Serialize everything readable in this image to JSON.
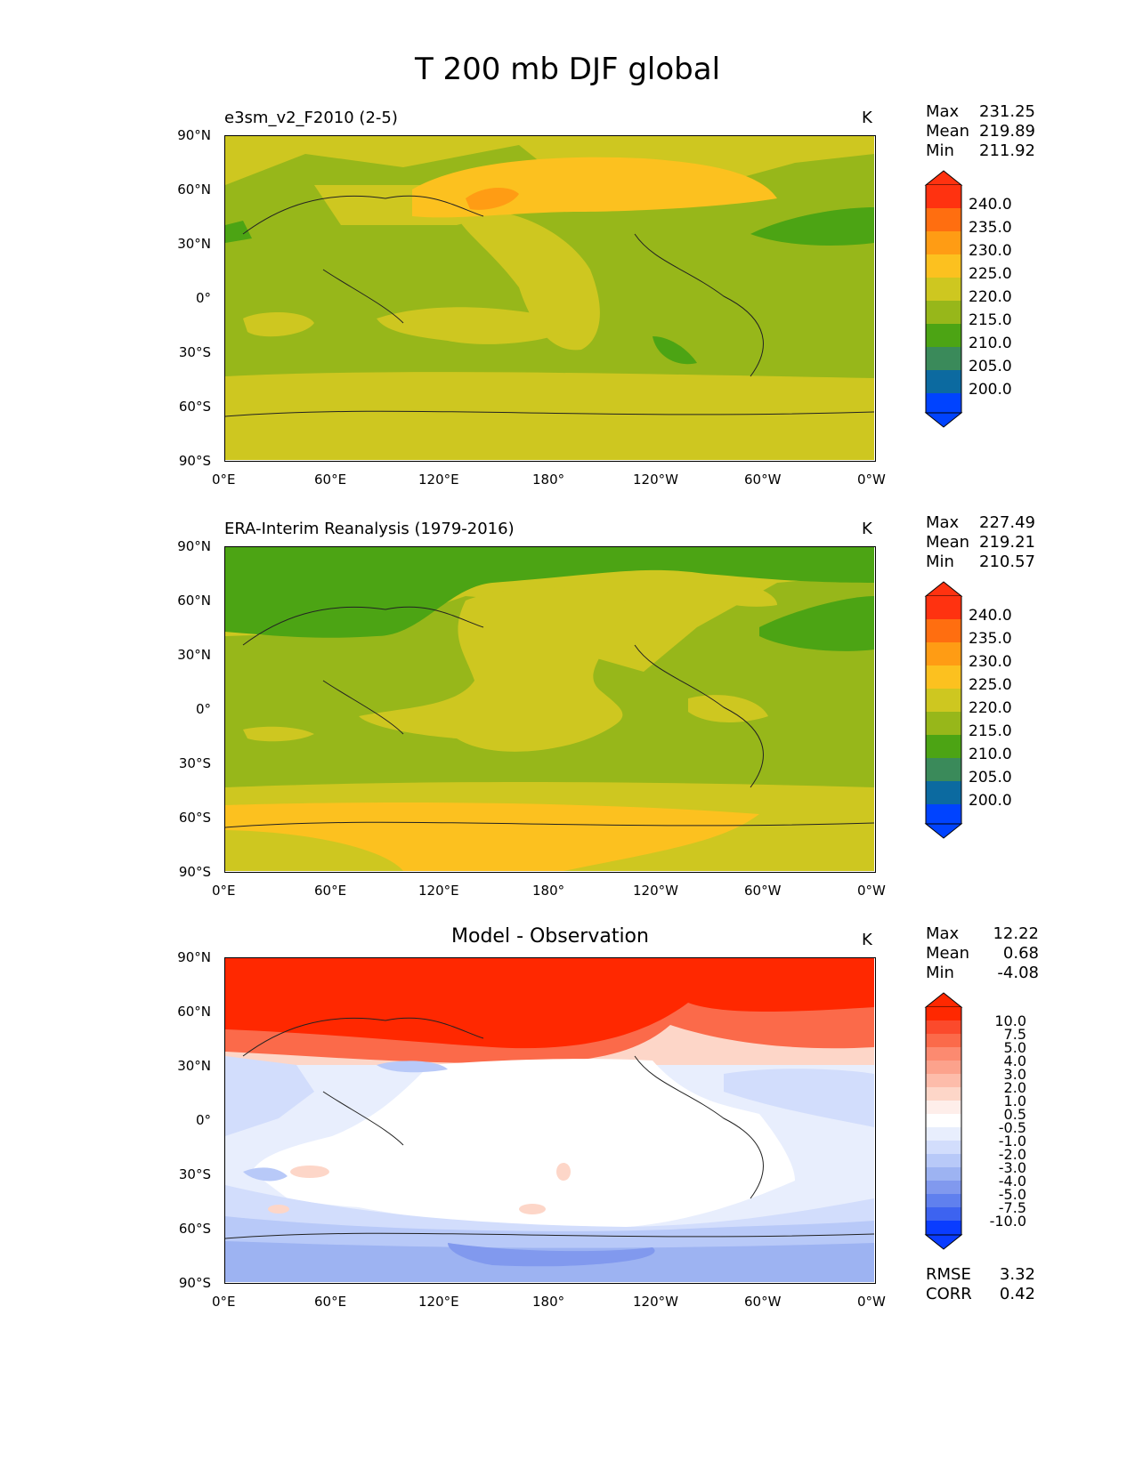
{
  "figure_title": "T 200 mb DJF global",
  "x_ticks": [
    "0°E",
    "60°E",
    "120°E",
    "180°",
    "120°W",
    "60°W",
    "0°W"
  ],
  "y_ticks": [
    "90°N",
    "60°N",
    "30°N",
    "0°",
    "30°S",
    "60°S",
    "90°S"
  ],
  "abs_colorbar": {
    "labels": [
      "240.0",
      "235.0",
      "230.0",
      "225.0",
      "220.0",
      "215.0",
      "210.0",
      "205.0",
      "200.0"
    ],
    "colors": [
      "#ff3210",
      "#ff6e10",
      "#ff9c14",
      "#fcc11f",
      "#cec720",
      "#97b71a",
      "#4ca414",
      "#3a8a5a",
      "#0c6aa0",
      "#0043ff"
    ]
  },
  "diff_colorbar": {
    "labels": [
      "10.0",
      "7.5",
      "5.0",
      "4.0",
      "3.0",
      "2.0",
      "1.0",
      "0.5",
      "-0.5",
      "-1.0",
      "-2.0",
      "-3.0",
      "-4.0",
      "-5.0",
      "-7.5",
      "-10.0"
    ],
    "colors": [
      "#ff2800",
      "#fb4a2c",
      "#fb6a4a",
      "#fc8a70",
      "#fca28c",
      "#fdbcaa",
      "#fdd6c8",
      "#feeeea",
      "#ffffff",
      "#e8eefd",
      "#d2ddfc",
      "#b8c9f8",
      "#9db3f2",
      "#8199ee",
      "#6080ee",
      "#3d63f0",
      "#0a3cff"
    ]
  },
  "panels": [
    {
      "title": "e3sm_v2_F2010 (2-5)",
      "units": "K",
      "stat_labels": [
        "Max",
        "Mean",
        "Min"
      ],
      "stat_values": [
        "231.25",
        "219.89",
        "211.92"
      ]
    },
    {
      "title": "ERA-Interim Reanalysis (1979-2016)",
      "units": "K",
      "stat_labels": [
        "Max",
        "Mean",
        "Min"
      ],
      "stat_values": [
        "227.49",
        "219.21",
        "210.57"
      ]
    },
    {
      "title": "Model - Observation",
      "units": "K",
      "stat_labels": [
        "Max",
        "Mean",
        "Min"
      ],
      "stat_values": [
        "12.22",
        "0.68",
        "-4.08"
      ],
      "metric_labels": [
        "RMSE",
        "CORR"
      ],
      "metric_values": [
        "3.32",
        "0.42"
      ]
    }
  ]
}
